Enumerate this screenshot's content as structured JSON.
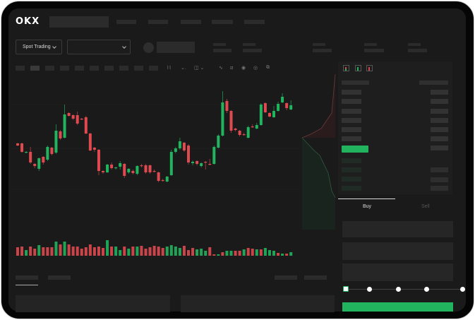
{
  "header": {
    "logo": "OKX",
    "spot_trading_label": "Spot Trading"
  },
  "trade": {
    "buy_tab": "Buy",
    "sell_tab": "Sell",
    "slider_percent": 0
  },
  "colors": {
    "up": "#22b35e",
    "down": "#de4a4f",
    "background": "#1a1a1a",
    "accent": "#22b35e"
  },
  "toolbar_icons": [
    "line-icon",
    "indicator-icon",
    "drawing-icon",
    "ruler-icon",
    "camera-icon",
    "settings-icon",
    "fullscreen-icon"
  ],
  "chart_data": {
    "type": "candlestick",
    "title": "",
    "xlabel": "",
    "ylabel": "",
    "ylim": [
      0,
      150
    ],
    "candles": [
      [
        67,
        68,
        63,
        64
      ],
      [
        67,
        68,
        54,
        55
      ],
      [
        54,
        56,
        53,
        55
      ],
      [
        55,
        62,
        38,
        40
      ],
      [
        38,
        39,
        32,
        35
      ],
      [
        31,
        47,
        28,
        46
      ],
      [
        48,
        49,
        37,
        40
      ],
      [
        44,
        64,
        42,
        62
      ],
      [
        61,
        62,
        50,
        52
      ],
      [
        54,
        94,
        52,
        85
      ],
      [
        84,
        86,
        72,
        74
      ],
      [
        75,
        122,
        74,
        108
      ],
      [
        110,
        111,
        105,
        106
      ],
      [
        107,
        108,
        100,
        102
      ],
      [
        107,
        112,
        93,
        95
      ],
      [
        102,
        103,
        100,
        101
      ],
      [
        104,
        106,
        80,
        81
      ],
      [
        81,
        82,
        56,
        57
      ],
      [
        61,
        62,
        55,
        58
      ],
      [
        58,
        59,
        22,
        28
      ],
      [
        28,
        29,
        24,
        26
      ],
      [
        26,
        38,
        25,
        37
      ],
      [
        37,
        40,
        30,
        32
      ],
      [
        32,
        34,
        30,
        33
      ],
      [
        34,
        42,
        30,
        39
      ],
      [
        38,
        39,
        18,
        21
      ],
      [
        26,
        32,
        24,
        31
      ],
      [
        28,
        30,
        23,
        25
      ],
      [
        24,
        36,
        22,
        35
      ],
      [
        36,
        38,
        33,
        35
      ],
      [
        36,
        38,
        24,
        26
      ],
      [
        36,
        37,
        24,
        26
      ],
      [
        28,
        30,
        26,
        27
      ],
      [
        26,
        27,
        12,
        14
      ],
      [
        15,
        17,
        13,
        14
      ],
      [
        13,
        21,
        12,
        20
      ],
      [
        22,
        58,
        21,
        55
      ],
      [
        55,
        62,
        53,
        60
      ],
      [
        60,
        75,
        58,
        70
      ],
      [
        68,
        69,
        55,
        57
      ],
      [
        64,
        66,
        37,
        40
      ],
      [
        39,
        43,
        36,
        41
      ],
      [
        42,
        43,
        36,
        38
      ],
      [
        35,
        40,
        33,
        39
      ],
      [
        41,
        42,
        30,
        40
      ],
      [
        38,
        45,
        36,
        37
      ],
      [
        38,
        64,
        37,
        62
      ],
      [
        61,
        80,
        60,
        78
      ],
      [
        78,
        141,
        77,
        125
      ],
      [
        127,
        130,
        110,
        113
      ],
      [
        113,
        114,
        82,
        85
      ],
      [
        88,
        89,
        84,
        86
      ],
      [
        85,
        86,
        77,
        79
      ],
      [
        80,
        82,
        78,
        79
      ],
      [
        75,
        92,
        74,
        90
      ],
      [
        91,
        94,
        89,
        90
      ],
      [
        88,
        96,
        87,
        93
      ],
      [
        93,
        124,
        92,
        122
      ],
      [
        124,
        125,
        110,
        111
      ],
      [
        110,
        111,
        104,
        105
      ],
      [
        104,
        120,
        103,
        113
      ],
      [
        113,
        126,
        112,
        123
      ],
      [
        125,
        138,
        124,
        133
      ],
      [
        124,
        125,
        114,
        117
      ],
      [
        115,
        128,
        114,
        121
      ]
    ],
    "volume": [
      [
        12,
        "d"
      ],
      [
        13,
        "d"
      ],
      [
        8,
        "u"
      ],
      [
        13,
        "d"
      ],
      [
        10,
        "d"
      ],
      [
        15,
        "u"
      ],
      [
        12,
        "d"
      ],
      [
        12,
        "d"
      ],
      [
        12,
        "d"
      ],
      [
        20,
        "u"
      ],
      [
        16,
        "d"
      ],
      [
        20,
        "u"
      ],
      [
        16,
        "d"
      ],
      [
        13,
        "d"
      ],
      [
        13,
        "d"
      ],
      [
        10,
        "d"
      ],
      [
        12,
        "d"
      ],
      [
        16,
        "d"
      ],
      [
        12,
        "d"
      ],
      [
        13,
        "d"
      ],
      [
        11,
        "d"
      ],
      [
        22,
        "u"
      ],
      [
        13,
        "d"
      ],
      [
        13,
        "u"
      ],
      [
        8,
        "u"
      ],
      [
        13,
        "d"
      ],
      [
        10,
        "u"
      ],
      [
        13,
        "d"
      ],
      [
        13,
        "u"
      ],
      [
        14,
        "d"
      ],
      [
        10,
        "d"
      ],
      [
        12,
        "d"
      ],
      [
        14,
        "d"
      ],
      [
        13,
        "d"
      ],
      [
        11,
        "d"
      ],
      [
        13,
        "u"
      ],
      [
        15,
        "u"
      ],
      [
        13,
        "u"
      ],
      [
        11,
        "u"
      ],
      [
        14,
        "d"
      ],
      [
        8,
        "d"
      ],
      [
        11,
        "d"
      ],
      [
        9,
        "u"
      ],
      [
        10,
        "u"
      ],
      [
        7,
        "u"
      ],
      [
        12,
        "d"
      ],
      [
        2,
        "d"
      ],
      [
        2,
        "u"
      ],
      [
        5,
        "d"
      ],
      [
        7,
        "u"
      ],
      [
        7,
        "u"
      ],
      [
        7,
        "d"
      ],
      [
        7,
        "d"
      ],
      [
        9,
        "u"
      ],
      [
        11,
        "d"
      ],
      [
        10,
        "d"
      ],
      [
        9,
        "u"
      ],
      [
        9,
        "d"
      ],
      [
        11,
        "u"
      ],
      [
        8,
        "u"
      ],
      [
        7,
        "u"
      ],
      [
        4,
        "d"
      ],
      [
        3,
        "u"
      ],
      [
        3,
        "d"
      ],
      [
        5,
        "u"
      ]
    ]
  }
}
